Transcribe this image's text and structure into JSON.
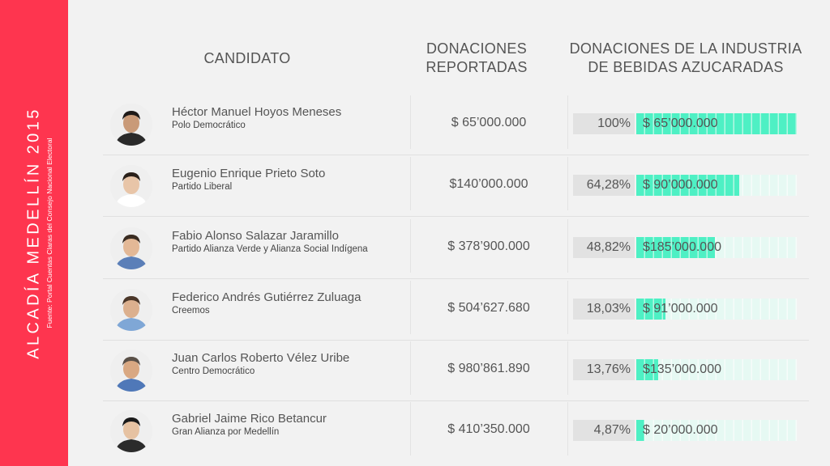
{
  "sidebar": {
    "title": "ALCADÍA MEDELLÍN 2015",
    "source": "Fuente: Portal Cuentas Claras del Consejo Nacional Electoral",
    "color": "#fe354f"
  },
  "headers": {
    "candidate": "CANDIDATO",
    "reported_line1": "DONACIONES",
    "reported_line2": "REPORTADAS",
    "industry_line1": "DONACIONES DE LA INDUSTRIA",
    "industry_line2": "DE BEBIDAS AZUCARADAS"
  },
  "colors": {
    "bar_fill": "#4ef0c4",
    "bar_track": "#e6f9f3",
    "accent": "#fe354f"
  },
  "rows": [
    {
      "name": "Héctor Manuel Hoyos Meneses",
      "party": "Polo Democrático",
      "reported": "$ 65’000.000",
      "pct": "100%",
      "industry": "$ 65’000.000"
    },
    {
      "name": "Eugenio Enrique Prieto Soto",
      "party": "Partido Liberal",
      "reported": "$140’000.000",
      "pct": "64,28%",
      "industry": "$ 90’000.000"
    },
    {
      "name": "Fabio Alonso Salazar Jaramillo",
      "party": "Partido Alianza Verde y Alianza Social Indígena",
      "reported": "$ 378’900.000",
      "pct": "48,82%",
      "industry": "$185’000.000"
    },
    {
      "name": "Federico Andrés Gutiérrez Zuluaga",
      "party": "Creemos",
      "reported": "$ 504’627.680",
      "pct": "18,03%",
      "industry": "$ 91’000.000"
    },
    {
      "name": "Juan Carlos Roberto Vélez Uribe",
      "party": "Centro Democrático",
      "reported": "$ 980’861.890",
      "pct": "13,76%",
      "industry": "$135’000.000"
    },
    {
      "name": "Gabriel Jaime Rico Betancur",
      "party": "Gran Alianza por Medellín",
      "reported": "$ 410’350.000",
      "pct": "4,87%",
      "industry": "$ 20’000.000"
    }
  ],
  "chart_data": {
    "type": "bar",
    "title": "ALCADÍA MEDELLÍN 2015",
    "categories": [
      "Héctor Manuel Hoyos Meneses",
      "Eugenio Enrique Prieto Soto",
      "Fabio Alonso Salazar Jaramillo",
      "Federico Andrés Gutiérrez Zuluaga",
      "Juan Carlos Roberto Vélez Uribe",
      "Gabriel Jaime Rico Betancur"
    ],
    "series": [
      {
        "name": "DONACIONES DE LA INDUSTRIA DE BEBIDAS AZUCARADAS",
        "values": [
          100,
          64.28,
          48.82,
          18.03,
          13.76,
          4.87
        ]
      }
    ],
    "ylim": [
      0,
      100
    ]
  }
}
